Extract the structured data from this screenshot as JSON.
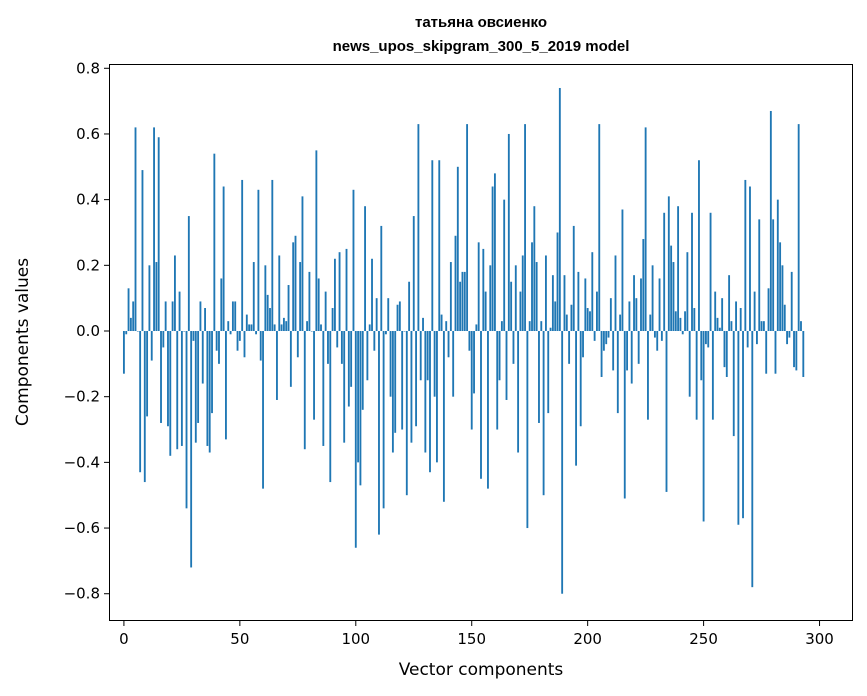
{
  "chart_data": {
    "type": "bar",
    "title_line1": "татьяна овсиенко",
    "title_line2": "news_upos_skipgram_300_5_2019 model",
    "xlabel": "Vector components",
    "ylabel": "Components values",
    "xlim": [
      -6,
      314
    ],
    "ylim": [
      -0.88,
      0.81
    ],
    "x_ticks": [
      0,
      50,
      100,
      150,
      200,
      250,
      300
    ],
    "x_tick_labels": [
      "0",
      "50",
      "100",
      "150",
      "200",
      "250",
      "300"
    ],
    "y_ticks": [
      -0.8,
      -0.6,
      -0.4,
      -0.2,
      0.0,
      0.2,
      0.4,
      0.6,
      0.8
    ],
    "y_tick_labels": [
      "−0.8",
      "−0.6",
      "−0.4",
      "−0.2",
      "0.0",
      "0.2",
      "0.4",
      "0.6",
      "0.8"
    ],
    "bar_color": "#1f77b4",
    "grid": false,
    "values": [
      -0.13,
      -0.01,
      0.13,
      0.04,
      0.09,
      0.62,
      0.0,
      -0.43,
      0.49,
      -0.46,
      -0.26,
      0.2,
      -0.09,
      0.62,
      0.21,
      0.59,
      -0.28,
      -0.05,
      0.09,
      -0.29,
      -0.38,
      0.09,
      0.23,
      -0.36,
      0.12,
      -0.35,
      0.0,
      -0.54,
      0.35,
      -0.72,
      -0.03,
      -0.34,
      -0.28,
      0.09,
      -0.16,
      0.07,
      -0.35,
      -0.37,
      -0.25,
      0.54,
      -0.06,
      -0.1,
      0.16,
      0.44,
      -0.33,
      0.03,
      -0.01,
      0.09,
      0.09,
      -0.06,
      -0.03,
      0.46,
      -0.08,
      0.05,
      0.02,
      0.02,
      0.21,
      -0.01,
      0.43,
      -0.09,
      -0.48,
      0.2,
      0.11,
      0.07,
      0.46,
      0.02,
      -0.21,
      0.23,
      0.02,
      0.04,
      0.03,
      0.14,
      -0.17,
      0.27,
      0.29,
      -0.08,
      0.21,
      0.41,
      -0.36,
      0.03,
      0.18,
      0.0,
      -0.27,
      0.55,
      0.16,
      0.02,
      -0.35,
      0.12,
      -0.1,
      -0.46,
      0.07,
      0.22,
      -0.05,
      0.24,
      -0.1,
      -0.34,
      0.25,
      -0.23,
      -0.17,
      0.43,
      -0.66,
      -0.4,
      -0.47,
      -0.24,
      0.38,
      -0.15,
      0.02,
      0.22,
      -0.06,
      0.1,
      -0.62,
      0.32,
      -0.54,
      -0.01,
      0.1,
      -0.2,
      -0.37,
      -0.31,
      0.08,
      0.09,
      -0.3,
      0.0,
      -0.5,
      0.15,
      -0.34,
      0.35,
      -0.29,
      0.63,
      -0.15,
      0.04,
      -0.37,
      -0.15,
      -0.43,
      0.52,
      -0.2,
      -0.4,
      0.52,
      0.05,
      -0.52,
      0.03,
      -0.08,
      0.21,
      -0.2,
      0.29,
      0.5,
      0.15,
      0.18,
      0.18,
      0.63,
      -0.06,
      -0.3,
      -0.19,
      0.02,
      0.27,
      -0.45,
      0.25,
      0.12,
      -0.48,
      0.2,
      0.44,
      0.48,
      -0.3,
      -0.15,
      0.03,
      0.4,
      -0.21,
      0.6,
      0.15,
      -0.1,
      0.2,
      -0.37,
      0.12,
      0.23,
      0.63,
      -0.6,
      0.03,
      0.27,
      0.38,
      0.21,
      -0.28,
      0.03,
      -0.5,
      0.23,
      -0.25,
      0.01,
      0.17,
      0.09,
      0.3,
      0.74,
      -0.8,
      0.17,
      0.05,
      -0.1,
      0.08,
      0.32,
      -0.41,
      0.18,
      -0.29,
      -0.08,
      0.16,
      0.07,
      0.06,
      0.24,
      -0.03,
      0.12,
      0.63,
      -0.14,
      -0.06,
      -0.04,
      -0.02,
      0.1,
      -0.12,
      0.23,
      -0.25,
      0.05,
      0.37,
      -0.51,
      -0.12,
      0.09,
      -0.16,
      0.17,
      0.1,
      -0.1,
      0.16,
      0.28,
      0.62,
      -0.27,
      0.05,
      0.2,
      -0.02,
      -0.06,
      0.16,
      -0.03,
      0.36,
      -0.49,
      0.41,
      0.26,
      0.21,
      0.06,
      0.38,
      0.04,
      -0.01,
      0.06,
      0.24,
      -0.2,
      0.36,
      0.07,
      -0.27,
      0.52,
      -0.15,
      -0.58,
      -0.04,
      -0.05,
      0.36,
      -0.27,
      0.12,
      0.04,
      0.01,
      0.1,
      -0.11,
      -0.14,
      0.17,
      0.03,
      -0.32,
      0.09,
      -0.59,
      0.07,
      -0.57,
      0.46,
      -0.05,
      0.44,
      -0.78,
      0.12,
      -0.04,
      0.34,
      0.03,
      0.03,
      -0.13,
      0.13,
      0.67,
      0.34,
      -0.13,
      0.4,
      0.27,
      0.2,
      0.08,
      -0.04,
      -0.02,
      0.18,
      -0.11,
      -0.12,
      0.63,
      0.03,
      -0.14
    ]
  }
}
